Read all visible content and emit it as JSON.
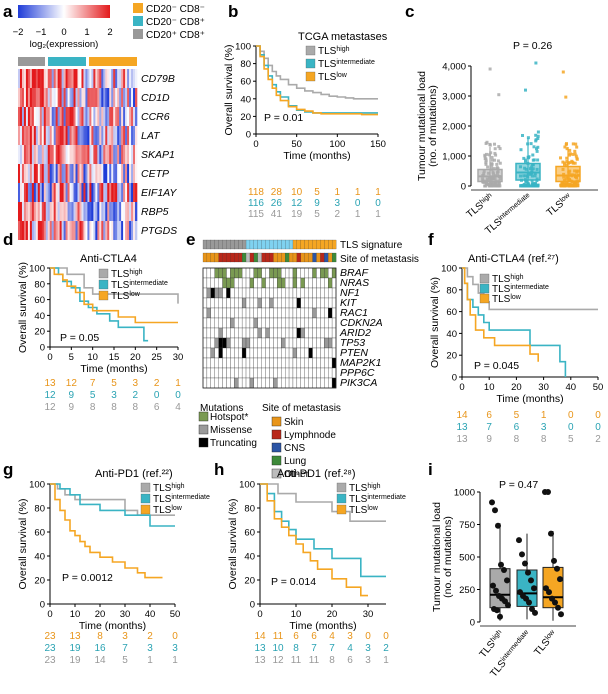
{
  "colors": {
    "high": "#aaaaaa",
    "intermediate": "#3ab4c4",
    "low": "#f5a623",
    "high_text": "#999999",
    "int_text": "#2aa3b3",
    "low_text": "#e8951a",
    "hotspot": "#7a9a52",
    "missense": "#9a9a9a",
    "truncating": "#000000",
    "skin": "#e8951a",
    "lymph": "#b8281a",
    "cns": "#2c55a5",
    "lung": "#3e8a3a",
    "other": "#bcbcbc",
    "heat_pos": "#e31a1c",
    "heat_neg": "#1f3cd8"
  },
  "panels": {
    "a": {
      "letter": "a",
      "scale_ticks": [
        "−2",
        "−1",
        "0",
        "1",
        "2"
      ],
      "scale_label": "log₂(expression)",
      "groups": [
        {
          "label": "CD20⁻ CD8⁻",
          "key": "orange"
        },
        {
          "label": "CD20⁻ CD8⁺",
          "key": "teal"
        },
        {
          "label": "CD20⁺ CD8⁺",
          "key": "gray"
        }
      ],
      "genes": [
        "CD79B",
        "CD1D",
        "CCR6",
        "LAT",
        "SKAP1",
        "CETP",
        "EIF1AY",
        "RBP5",
        "PTGDS"
      ]
    },
    "b": {
      "letter": "b"
    },
    "c": {
      "letter": "c"
    },
    "d": {
      "letter": "d"
    },
    "e": {
      "letter": "e"
    },
    "f": {
      "letter": "f"
    },
    "g": {
      "letter": "g"
    },
    "h": {
      "letter": "h"
    },
    "i": {
      "letter": "i"
    },
    "e_info": {
      "track1": "TLS signature",
      "track2": "Site of metastasis",
      "genes": [
        "BRAF",
        "NRAS",
        "NF1",
        "KIT",
        "RAC1",
        "CDKN2A",
        "ARID2",
        "TP53",
        "PTEN",
        "MAP2K1",
        "PPP6C",
        "PIK3CA"
      ],
      "mut_title": "Mutations",
      "site_title": "Site of metastasis",
      "mut_legend": [
        "Hotspot*",
        "Missense",
        "Truncating"
      ],
      "site_legend": [
        "Skin",
        "Lymphnode",
        "CNS",
        "Lung",
        "Other"
      ]
    }
  },
  "chart_data": [
    {
      "panel": "b",
      "type": "line",
      "title": "TCGA metastases",
      "xlabel": "Time (months)",
      "ylabel": "Overall survival (%)",
      "xlim": [
        0,
        150
      ],
      "ylim": [
        0,
        100
      ],
      "xticks": [
        0,
        50,
        100,
        150
      ],
      "yticks": [
        0,
        20,
        40,
        60,
        80,
        100
      ],
      "pvalue": "P = 0.01",
      "legend": [
        {
          "name": "TLS",
          "sup": "high"
        },
        {
          "name": "TLS",
          "sup": "intermediate"
        },
        {
          "name": "TLS",
          "sup": "low"
        }
      ],
      "series": [
        {
          "name": "TLShigh",
          "x": [
            0,
            5,
            10,
            15,
            20,
            25,
            30,
            40,
            50,
            60,
            70,
            80,
            90,
            100,
            110,
            120,
            150
          ],
          "y": [
            100,
            94,
            86,
            78,
            71,
            66,
            62,
            56,
            52,
            49,
            47,
            45,
            43,
            42,
            41,
            40,
            40
          ]
        },
        {
          "name": "TLSintermediate",
          "x": [
            0,
            5,
            10,
            15,
            20,
            25,
            30,
            40,
            50,
            60,
            70,
            80,
            90,
            100,
            150
          ],
          "y": [
            100,
            90,
            78,
            66,
            56,
            48,
            42,
            32,
            27,
            25,
            24,
            24,
            24,
            24,
            24
          ]
        },
        {
          "name": "TLSlow",
          "x": [
            0,
            5,
            10,
            15,
            20,
            25,
            30,
            40,
            50,
            60,
            70,
            80,
            90,
            100,
            110,
            120,
            130,
            140,
            150
          ],
          "y": [
            100,
            88,
            74,
            62,
            52,
            44,
            38,
            31,
            28,
            26,
            24,
            23,
            23,
            23,
            23,
            23,
            22,
            22,
            22
          ]
        }
      ],
      "risk_table": [
        [
          "118",
          "28",
          "10",
          "5",
          "1",
          "1",
          "1"
        ],
        [
          "116",
          "26",
          "12",
          "9",
          "3",
          "0",
          "0"
        ],
        [
          "115",
          "41",
          "19",
          "5",
          "2",
          "1",
          "1"
        ]
      ]
    },
    {
      "panel": "c",
      "type": "box",
      "ylabel_line1": "Tumour mutational load",
      "ylabel_line2": "(no. of mutations)",
      "ylim": [
        0,
        4000
      ],
      "yticks": [
        "0",
        "1,000",
        "2,000",
        "3,000",
        "4,000"
      ],
      "pvalue": "P = 0.26",
      "categories": [
        {
          "name": "TLS",
          "sup": "high"
        },
        {
          "name": "TLS",
          "sup": "intermediate"
        },
        {
          "name": "TLS",
          "sup": "low"
        }
      ],
      "series": [
        {
          "name": "TLShigh",
          "q1": 150,
          "median": 320,
          "q3": 550,
          "whisker_low": 0,
          "whisker_high": 1300,
          "max": 3900
        },
        {
          "name": "TLSintermediate",
          "q1": 200,
          "median": 450,
          "q3": 750,
          "whisker_low": 0,
          "whisker_high": 1600,
          "max": 4100
        },
        {
          "name": "TLSlow",
          "q1": 150,
          "median": 350,
          "q3": 650,
          "whisker_low": 0,
          "whisker_high": 1300,
          "max": 3800
        }
      ]
    },
    {
      "panel": "d",
      "type": "line",
      "title": "Anti-CTLA4",
      "xlabel": "Time (months)",
      "ylabel": "Overall survival (%)",
      "xlim": [
        0,
        30
      ],
      "ylim": [
        0,
        100
      ],
      "xticks": [
        0,
        5,
        10,
        15,
        20,
        25,
        30
      ],
      "yticks": [
        0,
        20,
        40,
        60,
        80,
        100
      ],
      "pvalue": "P = 0.05",
      "legend": [
        {
          "name": "TLS",
          "sup": "high"
        },
        {
          "name": "TLS",
          "sup": "intermediate"
        },
        {
          "name": "TLS",
          "sup": "low"
        }
      ],
      "series": [
        {
          "name": "TLShigh",
          "x": [
            0,
            3,
            4,
            5,
            8,
            10,
            27,
            30
          ],
          "y": [
            100,
            100,
            92,
            92,
            75,
            67,
            67,
            55
          ]
        },
        {
          "name": "TLSintermediate",
          "x": [
            0,
            2,
            3,
            5,
            7,
            9,
            11,
            14,
            16,
            20,
            22,
            23
          ],
          "y": [
            100,
            92,
            83,
            75,
            58,
            50,
            42,
            33,
            25,
            25,
            8,
            8
          ]
        },
        {
          "name": "TLSlow",
          "x": [
            0,
            1,
            3,
            4,
            6,
            8,
            10,
            12,
            14,
            16,
            18,
            20,
            30
          ],
          "y": [
            100,
            92,
            85,
            77,
            69,
            54,
            46,
            46,
            46,
            38,
            38,
            31,
            31
          ]
        }
      ],
      "risk_table": [
        [
          "13",
          "12",
          "7",
          "5",
          "3",
          "2",
          "1"
        ],
        [
          "12",
          "9",
          "5",
          "3",
          "2",
          "0",
          "0"
        ],
        [
          "12",
          "9",
          "8",
          "8",
          "8",
          "6",
          "4"
        ]
      ]
    },
    {
      "panel": "f",
      "type": "line",
      "title": "Anti-CTLA4 (ref.²⁷)",
      "xlabel": "Time (months)",
      "ylabel": "Overall survival (%)",
      "xlim": [
        0,
        50
      ],
      "ylim": [
        0,
        100
      ],
      "xticks": [
        0,
        10,
        20,
        30,
        40,
        50
      ],
      "yticks": [
        0,
        20,
        40,
        60,
        80,
        100
      ],
      "pvalue": "P = 0.045",
      "legend": [
        {
          "name": "TLS",
          "sup": "high"
        },
        {
          "name": "TLS",
          "sup": "intermediate"
        },
        {
          "name": "TLS",
          "sup": "low"
        }
      ],
      "series": [
        {
          "name": "TLShigh",
          "x": [
            0,
            2,
            4,
            6,
            8,
            10,
            50
          ],
          "y": [
            100,
            92,
            85,
            77,
            69,
            62,
            62
          ]
        },
        {
          "name": "TLSintermediate",
          "x": [
            0,
            1,
            2,
            4,
            6,
            8,
            10,
            20,
            25,
            28,
            36,
            38
          ],
          "y": [
            100,
            86,
            71,
            64,
            57,
            50,
            43,
            43,
            29,
            29,
            14,
            0
          ]
        },
        {
          "name": "TLSlow",
          "x": [
            0,
            1,
            2,
            3,
            5,
            8,
            12,
            20,
            25,
            28
          ],
          "y": [
            100,
            86,
            71,
            57,
            43,
            36,
            29,
            29,
            21,
            14
          ]
        }
      ],
      "risk_table": [
        [
          "14",
          "6",
          "5",
          "1",
          "0",
          "0"
        ],
        [
          "13",
          "7",
          "6",
          "3",
          "0",
          "0"
        ],
        [
          "13",
          "9",
          "8",
          "8",
          "5",
          "2"
        ]
      ]
    },
    {
      "panel": "g",
      "type": "line",
      "title": "Anti-PD1 (ref.²²)",
      "xlabel": "Time (months)",
      "ylabel": "Overall survival (%)",
      "xlim": [
        0,
        50
      ],
      "ylim": [
        0,
        100
      ],
      "xticks": [
        0,
        10,
        20,
        30,
        40,
        50
      ],
      "yticks": [
        0,
        20,
        40,
        60,
        80,
        100
      ],
      "pvalue": "P = 0.0012",
      "legend": [
        {
          "name": "TLS",
          "sup": "high"
        },
        {
          "name": "TLS",
          "sup": "intermediate"
        },
        {
          "name": "TLS",
          "sup": "low"
        }
      ],
      "series": [
        {
          "name": "TLShigh",
          "x": [
            0,
            3,
            6,
            10,
            20,
            30,
            35,
            40,
            50
          ],
          "y": [
            100,
            96,
            91,
            87,
            87,
            78,
            74,
            74,
            74
          ]
        },
        {
          "name": "TLSintermediate",
          "x": [
            0,
            4,
            8,
            12,
            20,
            30,
            40,
            50
          ],
          "y": [
            100,
            96,
            91,
            83,
            78,
            74,
            65,
            65
          ]
        },
        {
          "name": "TLSlow",
          "x": [
            0,
            2,
            4,
            6,
            8,
            10,
            12,
            14,
            16,
            20,
            25,
            30,
            35,
            38,
            40,
            45
          ],
          "y": [
            100,
            87,
            78,
            70,
            61,
            57,
            52,
            48,
            43,
            39,
            35,
            30,
            26,
            22,
            22,
            22
          ]
        }
      ],
      "risk_table": [
        [
          "23",
          "13",
          "8",
          "3",
          "2",
          "0"
        ],
        [
          "23",
          "19",
          "16",
          "7",
          "3",
          "3"
        ],
        [
          "23",
          "19",
          "14",
          "5",
          "1",
          "1"
        ]
      ]
    },
    {
      "panel": "h",
      "type": "line",
      "title": "Anti-PD1 (ref.²⁸)",
      "xlabel": "Time (months)",
      "ylabel": "Overall survival (%)",
      "xlim": [
        0,
        35
      ],
      "ylim": [
        0,
        100
      ],
      "xticks": [
        0,
        10,
        20,
        30
      ],
      "yticks": [
        0,
        20,
        40,
        60,
        80,
        100
      ],
      "pvalue": "P = 0.014",
      "legend": [
        {
          "name": "TLS",
          "sup": "high"
        },
        {
          "name": "TLS",
          "sup": "intermediate"
        },
        {
          "name": "TLS",
          "sup": "low"
        }
      ],
      "series": [
        {
          "name": "TLShigh",
          "x": [
            0,
            5,
            10,
            15,
            20,
            25,
            35
          ],
          "y": [
            100,
            92,
            85,
            85,
            77,
            69,
            69
          ]
        },
        {
          "name": "TLSintermediate",
          "x": [
            0,
            2,
            4,
            6,
            8,
            10,
            15,
            20,
            25,
            28,
            35
          ],
          "y": [
            100,
            92,
            77,
            69,
            62,
            54,
            46,
            38,
            38,
            23,
            23
          ]
        },
        {
          "name": "TLSlow",
          "x": [
            0,
            2,
            4,
            6,
            8,
            10,
            12,
            14,
            16,
            18,
            20,
            22,
            24,
            26,
            28,
            30
          ],
          "y": [
            100,
            86,
            71,
            64,
            57,
            50,
            43,
            36,
            29,
            29,
            21,
            21,
            14,
            14,
            7,
            7
          ]
        }
      ],
      "risk_table": [
        [
          "14",
          "11",
          "6",
          "6",
          "4",
          "3",
          "0",
          "0"
        ],
        [
          "13",
          "10",
          "8",
          "7",
          "7",
          "4",
          "3",
          "2"
        ],
        [
          "13",
          "12",
          "11",
          "11",
          "8",
          "6",
          "3",
          "1"
        ]
      ]
    },
    {
      "panel": "i",
      "type": "box",
      "ylabel_line1": "Tumour mutational load",
      "ylabel_line2": "(no. of mutations)",
      "ylim": [
        0,
        1100
      ],
      "yticks": [
        "0",
        "250",
        "500",
        "750",
        "1000"
      ],
      "pvalue": "P = 0.47",
      "categories": [
        {
          "name": "TLS",
          "sup": "high"
        },
        {
          "name": "TLS",
          "sup": "intermediate"
        },
        {
          "name": "TLS",
          "sup": "low"
        }
      ],
      "series": [
        {
          "name": "TLShigh",
          "q1": 110,
          "median": 210,
          "q3": 410,
          "whisker_low": 10,
          "whisker_high": 760,
          "points": [
            920,
            860,
            740,
            440,
            400,
            320,
            280,
            240,
            200,
            180,
            160,
            130,
            100,
            90,
            40
          ]
        },
        {
          "name": "TLSintermediate",
          "q1": 120,
          "median": 220,
          "q3": 400,
          "whisker_low": 20,
          "whisker_high": 680,
          "points": [
            630,
            520,
            450,
            380,
            320,
            260,
            230,
            200,
            180,
            150,
            100,
            70
          ]
        },
        {
          "name": "TLSlow",
          "q1": 110,
          "median": 190,
          "q3": 420,
          "whisker_low": 10,
          "whisker_high": 700,
          "points": [
            1000,
            1000,
            680,
            470,
            410,
            330,
            260,
            230,
            180,
            150,
            110,
            60
          ]
        }
      ]
    }
  ]
}
